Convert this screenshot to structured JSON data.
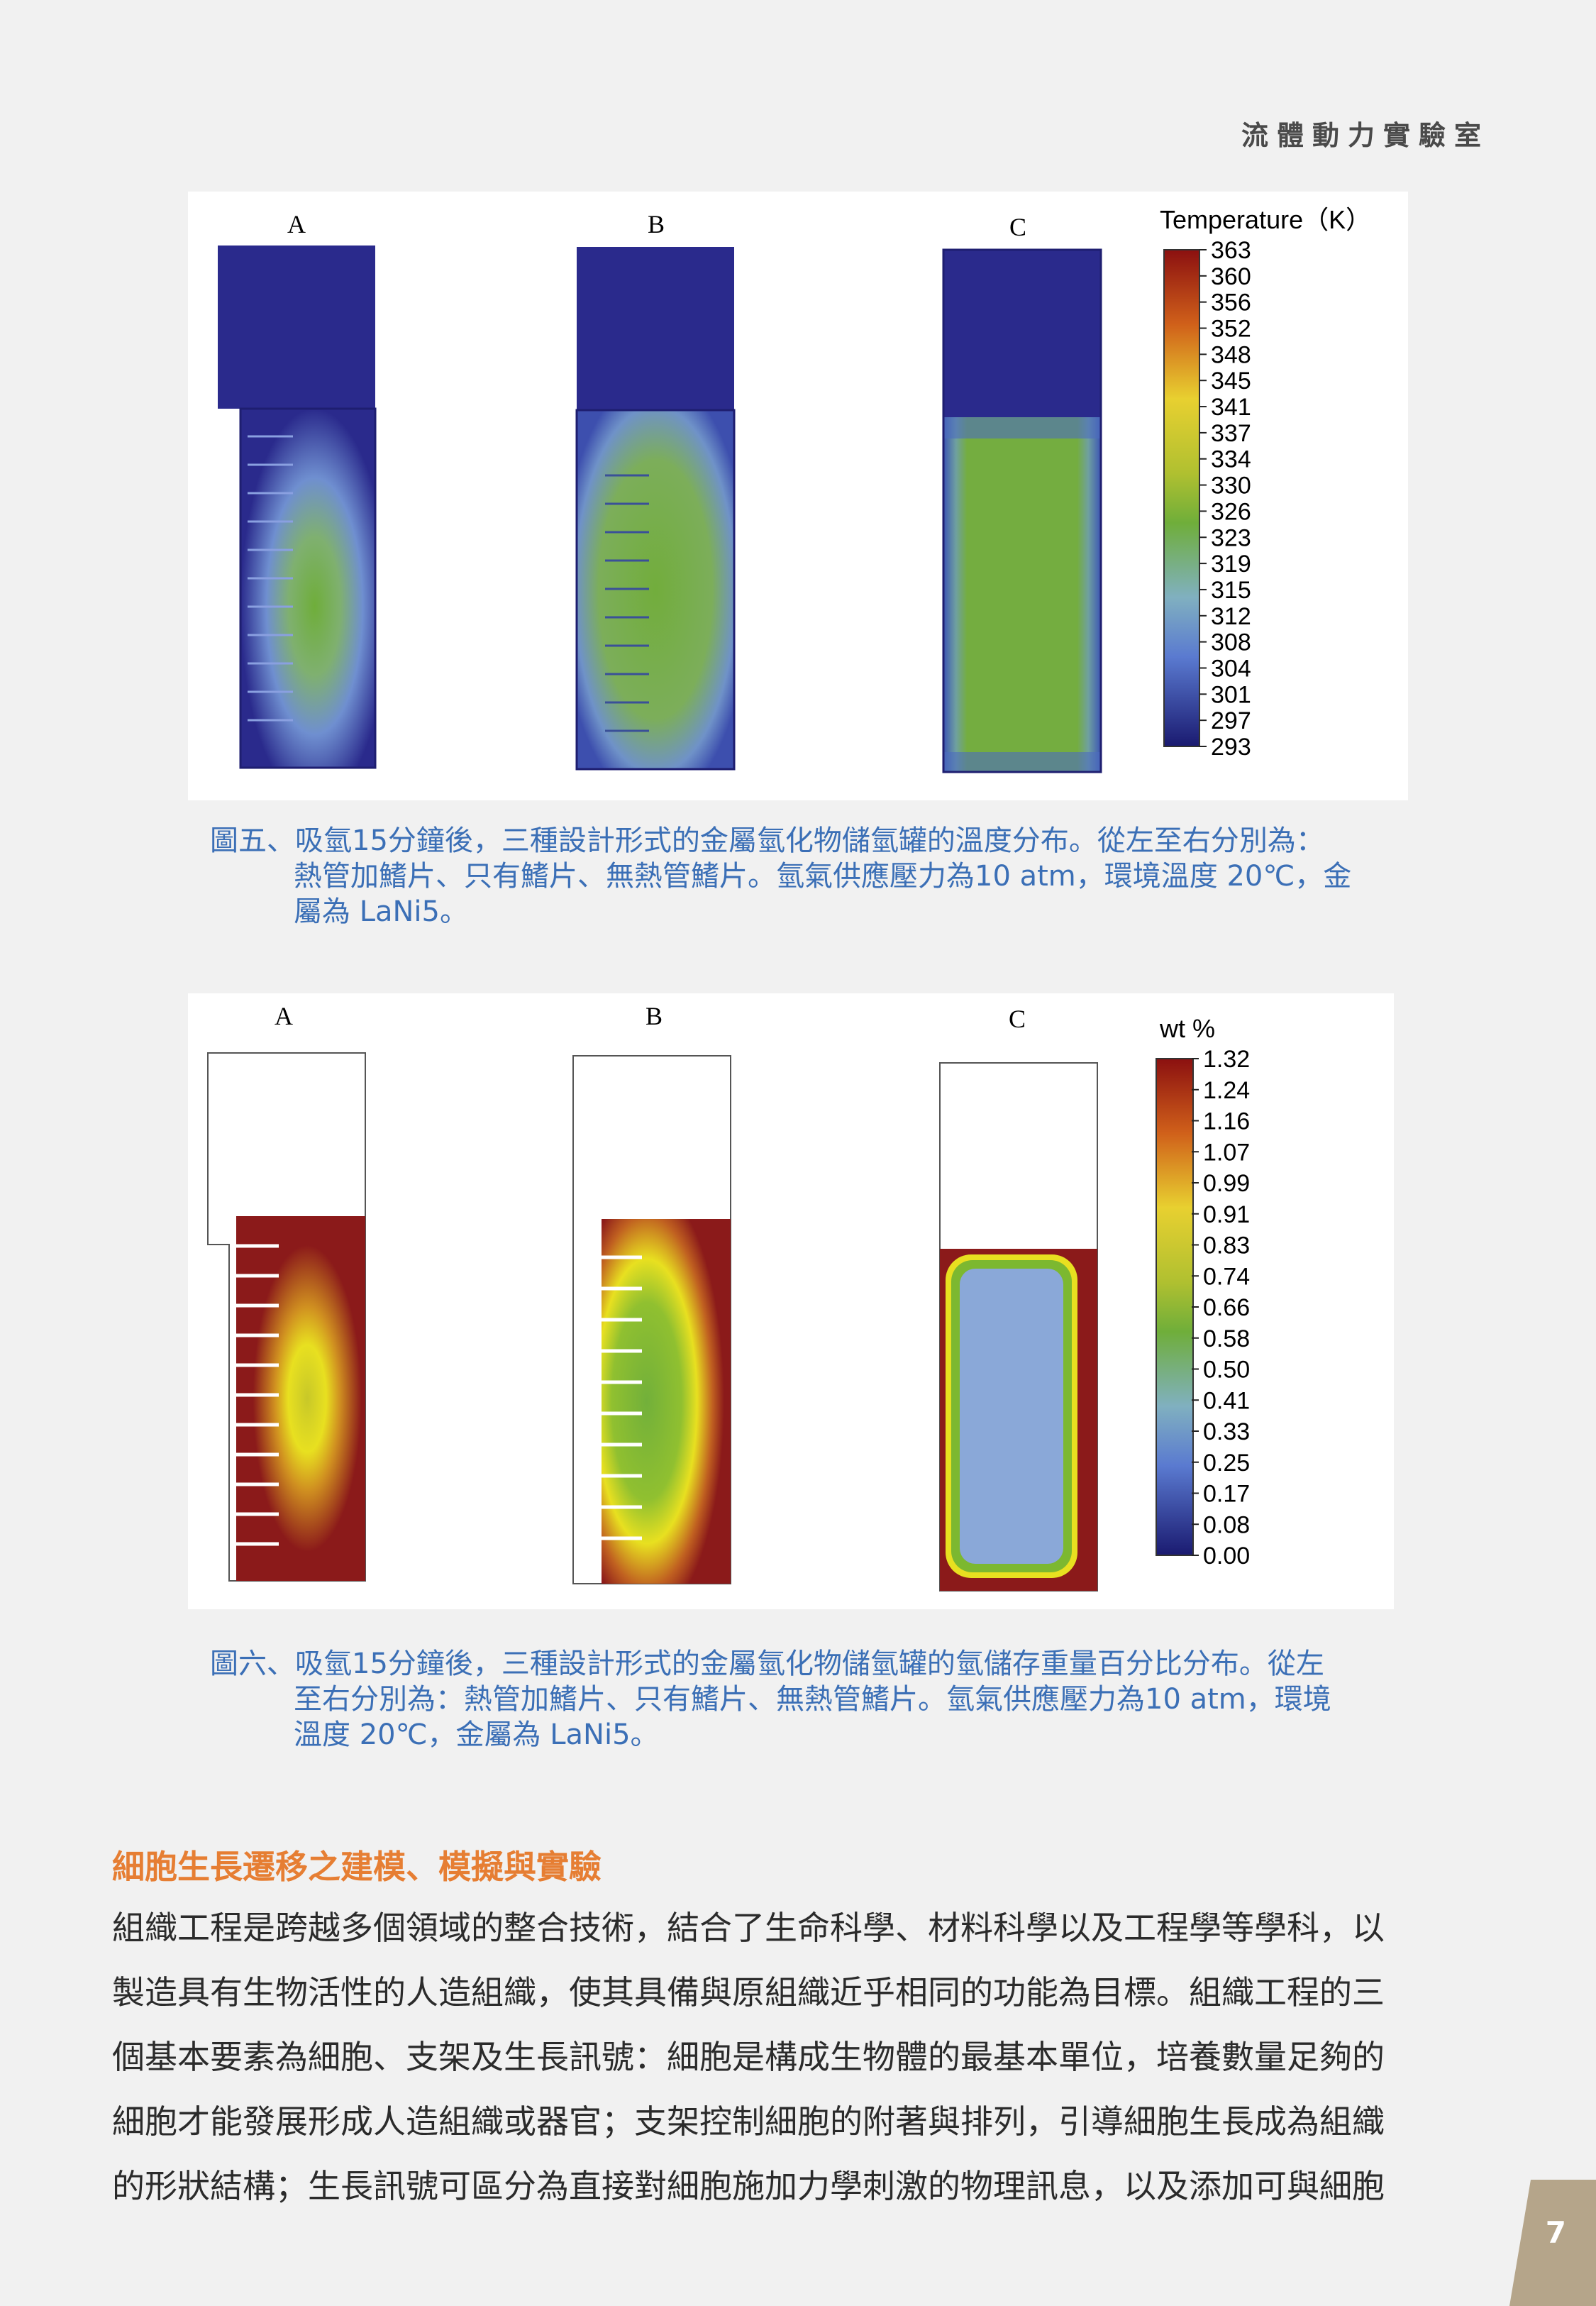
{
  "header": {
    "lab_name": "流體動力實驗室"
  },
  "figure5": {
    "panel_labels": [
      "A",
      "B",
      "C"
    ],
    "legend_title": "Temperature（K）",
    "legend_ticks": [
      "363",
      "360",
      "356",
      "352",
      "348",
      "345",
      "341",
      "337",
      "334",
      "330",
      "326",
      "323",
      "319",
      "315",
      "312",
      "308",
      "304",
      "301",
      "297",
      "293"
    ],
    "colors": {
      "background_tank": "#2a2a8c",
      "mid_green": "#6fae3a"
    }
  },
  "caption5": {
    "line1": "圖五、吸氫15分鐘後，三種設計形式的金屬氫化物儲氫罐的溫度分布。從左至右分別為：",
    "line2": "熱管加鰭片、只有鰭片、無熱管鰭片。氫氣供應壓力為10  atm，環境溫度  20℃，金",
    "line3": "屬為 LaNi5。"
  },
  "figure6": {
    "panel_labels": [
      "A",
      "B",
      "C"
    ],
    "legend_title": "wt %",
    "legend_ticks": [
      "1.32",
      "1.24",
      "1.16",
      "1.07",
      "0.99",
      "0.91",
      "0.83",
      "0.74",
      "0.66",
      "0.58",
      "0.50",
      "0.41",
      "0.33",
      "0.25",
      "0.17",
      "0.08",
      "0.00"
    ],
    "colors": {
      "saturated_red": "#8b1a1a"
    }
  },
  "caption6": {
    "line1": "圖六、吸氫15分鐘後，三種設計形式的金屬氫化物儲氫罐的氫儲存重量百分比分布。從左",
    "line2": "至右分別為：熱管加鰭片、只有鰭片、無熱管鰭片。氫氣供應壓力為10 atm，環境",
    "line3": "溫度 20℃，金屬為 LaNi5。"
  },
  "section": {
    "title": "細胞生長遷移之建模、模擬與實驗",
    "lines": [
      "組織工程是跨越多個領域的整合技術，結合了生命科學、材料科學以及工程學等學科，以",
      "製造具有生物活性的人造組織，使其具備與原組織近乎相同的功能為目標。組織工程的三",
      "個基本要素為細胞、支架及生長訊號：細胞是構成生物體的最基本單位，培養數量足夠的",
      "細胞才能發展形成人造組織或器官；支架控制細胞的附著與排列，引導細胞生長成為組織",
      "的形狀結構；生長訊號可區分為直接對細胞施加力學刺激的物理訊息，以及添加可與細胞"
    ]
  },
  "page": {
    "number": "7",
    "tab_color": "#b5a58a"
  }
}
